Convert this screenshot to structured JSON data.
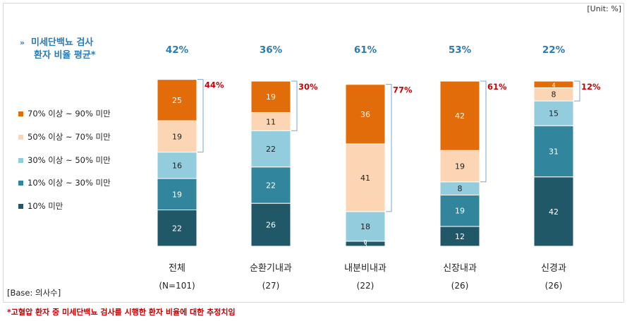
{
  "unit_label": "[Unit: %]",
  "title": {
    "line1": "미세단백뇨 검사",
    "line2": "환자 비율 평균*",
    "arrow": "»"
  },
  "legend": [
    {
      "label": "70% 이상 ~ 90% 미만",
      "color": "#e36c0a"
    },
    {
      "label": "50% 이상 ~ 70% 미만",
      "color": "#fcd5b5"
    },
    {
      "label": "30% 이상 ~ 50% 미만",
      "color": "#93cddd"
    },
    {
      "label": "10% 이상 ~ 30% 미만",
      "color": "#31859c"
    },
    {
      "label": "10% 미만",
      "color": "#215868"
    }
  ],
  "base_text": "[Base: 의사수]",
  "footnote": "*고혈압 환자 중 미세단백뇨 검사를 시행한 환자 비율에 대한 추정치임",
  "chart_data": {
    "type": "bar",
    "stacked": true,
    "categories": [
      "전체",
      "순환기내과",
      "내분비내과",
      "신장내과",
      "신경과"
    ],
    "sample_sizes": [
      "(N=101)",
      "(27)",
      "(22)",
      "(26)",
      "(26)"
    ],
    "averages": [
      "42%",
      "36%",
      "61%",
      "53%",
      "22%"
    ],
    "top2_totals": [
      "44%",
      "30%",
      "77%",
      "61%",
      "12%"
    ],
    "series": [
      {
        "name": "10% 미만",
        "values": [
          22,
          26,
          3,
          12,
          42
        ],
        "color": "#215868",
        "label_color": "#ffffff"
      },
      {
        "name": "10% 이상 ~ 30% 미만",
        "values": [
          19,
          22,
          0,
          19,
          31
        ],
        "color": "#31859c",
        "label_color": "#ffffff"
      },
      {
        "name": "30% 이상 ~ 50% 미만",
        "values": [
          16,
          22,
          18,
          8,
          15
        ],
        "color": "#93cddd",
        "label_color": "#222222"
      },
      {
        "name": "50% 이상 ~ 70% 미만",
        "values": [
          19,
          11,
          41,
          19,
          8
        ],
        "color": "#fcd5b5",
        "label_color": "#222222"
      },
      {
        "name": "70% 이상 ~ 90% 미만",
        "values": [
          25,
          19,
          36,
          42,
          4
        ],
        "color": "#e36c0a",
        "label_color": "#ffffff"
      }
    ],
    "ylim": [
      0,
      100
    ],
    "average_color": "#2a7ab8",
    "top2_color": "#cc0000",
    "bracket_color": "#7aa6d6"
  }
}
